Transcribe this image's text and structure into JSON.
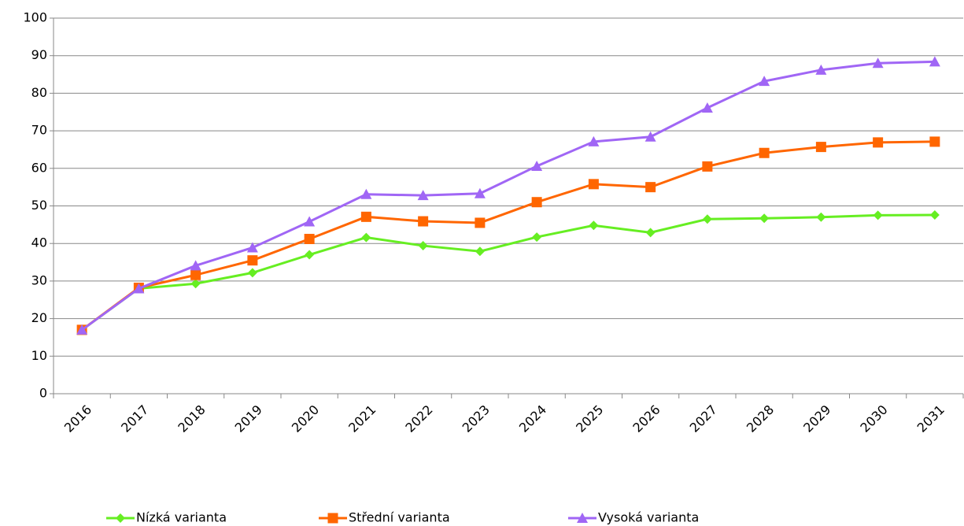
{
  "chart_data": {
    "type": "line",
    "categories": [
      "2016",
      "2017",
      "2018",
      "2019",
      "2020",
      "2021",
      "2022",
      "2023",
      "2024",
      "2025",
      "2026",
      "2027",
      "2028",
      "2029",
      "2030",
      "2031"
    ],
    "series": [
      {
        "name": "Nízká varianta",
        "color": "#66ee22",
        "marker": "diamond",
        "values": [
          17,
          28,
          29.3,
          32.2,
          37,
          41.6,
          39.4,
          37.9,
          41.7,
          44.8,
          42.9,
          46.5,
          46.7,
          47,
          47.5,
          47.6
        ]
      },
      {
        "name": "Střední varianta",
        "color": "#ff6600",
        "marker": "square",
        "values": [
          17,
          28.2,
          31.6,
          35.5,
          41.2,
          47.1,
          45.9,
          45.5,
          51,
          55.8,
          55,
          60.5,
          64.1,
          65.7,
          66.9,
          67.1
        ]
      },
      {
        "name": "Vysoká varianta",
        "color": "#a066f5",
        "marker": "triangle",
        "values": [
          17,
          28,
          34.1,
          38.9,
          45.8,
          53.1,
          52.8,
          53.3,
          60.6,
          67.1,
          68.4,
          76.1,
          83.2,
          86.2,
          88,
          88.4
        ]
      }
    ],
    "ylim": [
      0,
      100
    ],
    "yticks": [
      0,
      10,
      20,
      30,
      40,
      50,
      60,
      70,
      80,
      90,
      100
    ],
    "grid": true,
    "legend": "bottom"
  }
}
